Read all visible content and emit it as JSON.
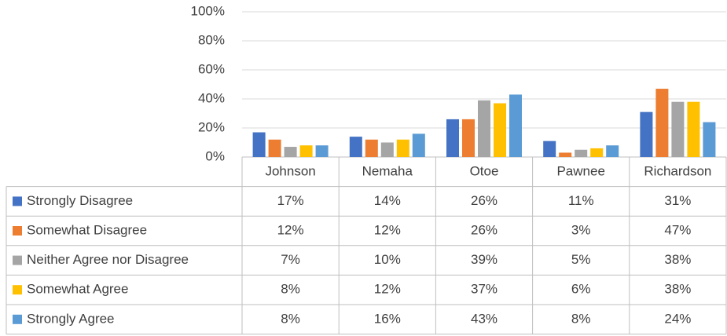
{
  "chart_data": {
    "type": "bar",
    "categories": [
      "Johnson",
      "Nemaha",
      "Otoe",
      "Pawnee",
      "Richardson"
    ],
    "series": [
      {
        "name": "Strongly Disagree",
        "color": "#4472c4",
        "values": [
          17,
          14,
          26,
          11,
          31
        ],
        "value_labels": [
          "17%",
          "14%",
          "26%",
          "11%",
          "31%"
        ]
      },
      {
        "name": "Somewhat Disagree",
        "color": "#ed7d31",
        "values": [
          12,
          12,
          26,
          3,
          47
        ],
        "value_labels": [
          "12%",
          "12%",
          "26%",
          "3%",
          "47%"
        ]
      },
      {
        "name": "Neither Agree nor Disagree",
        "color": "#a5a5a5",
        "values": [
          7,
          10,
          39,
          5,
          38
        ],
        "value_labels": [
          "7%",
          "10%",
          "39%",
          "5%",
          "38%"
        ]
      },
      {
        "name": "Somewhat Agree",
        "color": "#ffc000",
        "values": [
          8,
          12,
          37,
          6,
          38
        ],
        "value_labels": [
          "8%",
          "12%",
          "37%",
          "6%",
          "38%"
        ]
      },
      {
        "name": "Strongly Agree",
        "color": "#5b9bd5",
        "values": [
          8,
          16,
          43,
          8,
          24
        ],
        "value_labels": [
          "8%",
          "16%",
          "43%",
          "8%",
          "24%"
        ]
      }
    ],
    "ylim": [
      0,
      100
    ],
    "yticks": [
      {
        "value": 0,
        "label": "0%"
      },
      {
        "value": 20,
        "label": "20%"
      },
      {
        "value": 40,
        "label": "40%"
      },
      {
        "value": 60,
        "label": "60%"
      },
      {
        "value": 80,
        "label": "80%"
      },
      {
        "value": 100,
        "label": "100%"
      }
    ],
    "grid": true
  }
}
